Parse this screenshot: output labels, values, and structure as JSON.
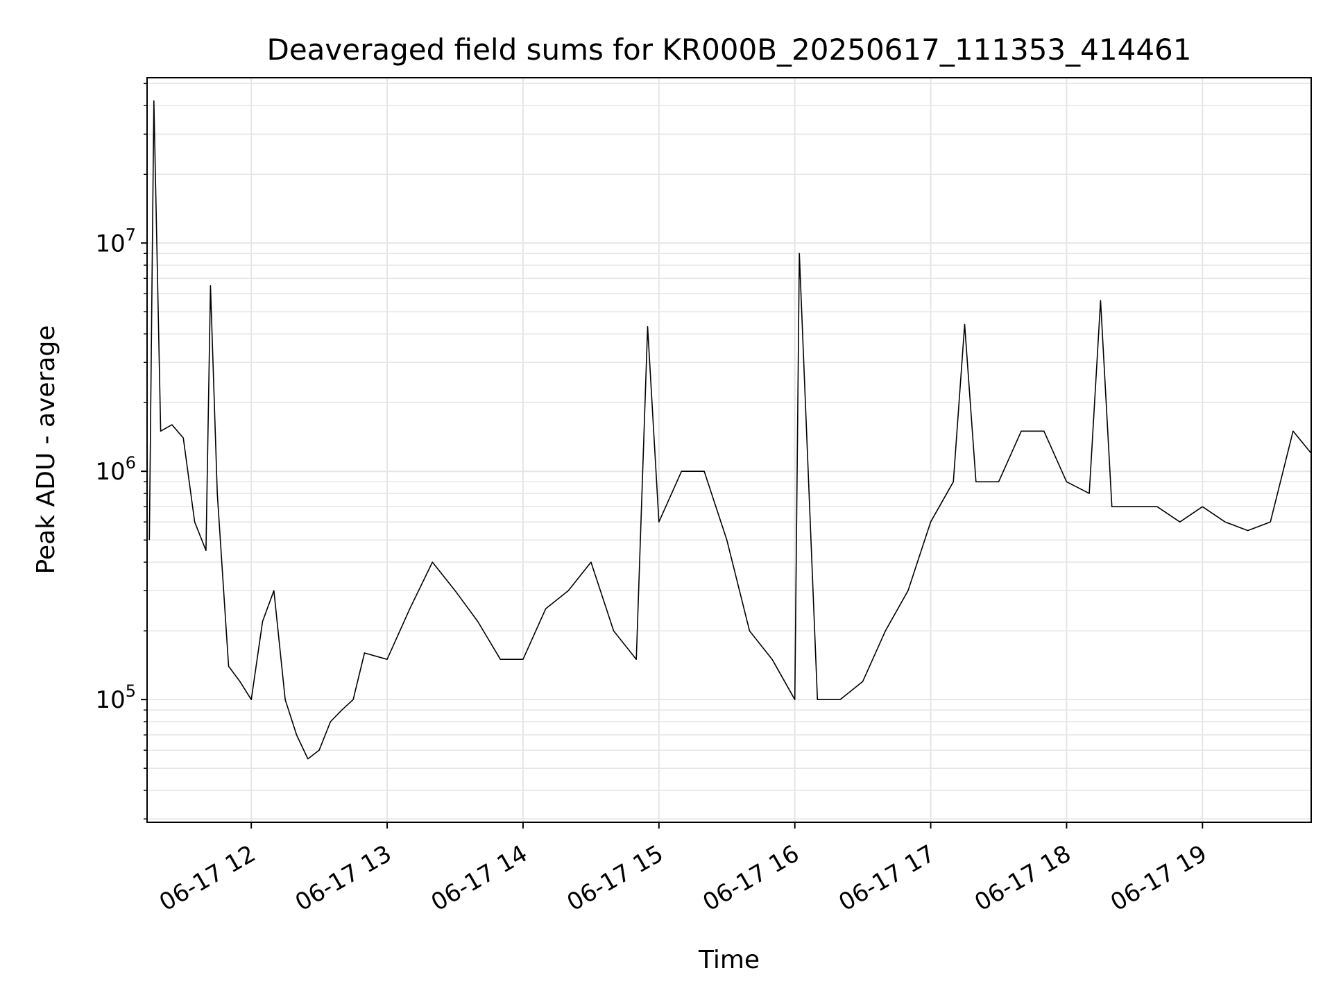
{
  "chart_data": {
    "type": "line",
    "title": "Deaveraged field sums for KR000B_20250617_111353_414461",
    "xlabel": "Time",
    "ylabel": "Peak ADU - average",
    "x_axis_type": "time",
    "y_axis_type": "log",
    "xlim": [
      "2025-06-17 11:14",
      "2025-06-17 19:48"
    ],
    "ylim": [
      29000,
      53000000
    ],
    "x_ticks": [
      {
        "value": "2025-06-17 12:00",
        "label": "06-17 12"
      },
      {
        "value": "2025-06-17 13:00",
        "label": "06-17 13"
      },
      {
        "value": "2025-06-17 14:00",
        "label": "06-17 14"
      },
      {
        "value": "2025-06-17 15:00",
        "label": "06-17 15"
      },
      {
        "value": "2025-06-17 16:00",
        "label": "06-17 16"
      },
      {
        "value": "2025-06-17 17:00",
        "label": "06-17 17"
      },
      {
        "value": "2025-06-17 18:00",
        "label": "06-17 18"
      },
      {
        "value": "2025-06-17 19:00",
        "label": "06-17 19"
      }
    ],
    "y_ticks": [
      {
        "value": 100000,
        "base": "10",
        "exp": "5"
      },
      {
        "value": 1000000,
        "base": "10",
        "exp": "6"
      },
      {
        "value": 10000000,
        "base": "10",
        "exp": "7"
      }
    ],
    "grid": true,
    "minor_grid": true,
    "legend": "none",
    "line_color": "#000000",
    "grid_color": "#e6e6e6",
    "series": [
      {
        "x": [
          "2025-06-17 11:15",
          "2025-06-17 11:17",
          "2025-06-17 11:20",
          "2025-06-17 11:25",
          "2025-06-17 11:30",
          "2025-06-17 11:35",
          "2025-06-17 11:40",
          "2025-06-17 11:42",
          "2025-06-17 11:45",
          "2025-06-17 11:50",
          "2025-06-17 11:55",
          "2025-06-17 12:00",
          "2025-06-17 12:05",
          "2025-06-17 12:10",
          "2025-06-17 12:15",
          "2025-06-17 12:20",
          "2025-06-17 12:25",
          "2025-06-17 12:30",
          "2025-06-17 12:35",
          "2025-06-17 12:40",
          "2025-06-17 12:45",
          "2025-06-17 12:50",
          "2025-06-17 13:00",
          "2025-06-17 13:10",
          "2025-06-17 13:20",
          "2025-06-17 13:30",
          "2025-06-17 13:40",
          "2025-06-17 13:50",
          "2025-06-17 14:00",
          "2025-06-17 14:10",
          "2025-06-17 14:20",
          "2025-06-17 14:30",
          "2025-06-17 14:40",
          "2025-06-17 14:50",
          "2025-06-17 14:55",
          "2025-06-17 15:00",
          "2025-06-17 15:10",
          "2025-06-17 15:20",
          "2025-06-17 15:30",
          "2025-06-17 15:40",
          "2025-06-17 15:50",
          "2025-06-17 16:00",
          "2025-06-17 16:02",
          "2025-06-17 16:10",
          "2025-06-17 16:20",
          "2025-06-17 16:30",
          "2025-06-17 16:40",
          "2025-06-17 16:50",
          "2025-06-17 17:00",
          "2025-06-17 17:10",
          "2025-06-17 17:15",
          "2025-06-17 17:20",
          "2025-06-17 17:30",
          "2025-06-17 17:40",
          "2025-06-17 17:50",
          "2025-06-17 18:00",
          "2025-06-17 18:10",
          "2025-06-17 18:15",
          "2025-06-17 18:20",
          "2025-06-17 18:30",
          "2025-06-17 18:40",
          "2025-06-17 18:50",
          "2025-06-17 19:00",
          "2025-06-17 19:10",
          "2025-06-17 19:20",
          "2025-06-17 19:30",
          "2025-06-17 19:40",
          "2025-06-17 19:48"
        ],
        "y": [
          500000,
          42000000,
          1500000,
          1600000,
          1400000,
          600000,
          450000,
          6500000,
          800000,
          140000,
          120000,
          100000,
          220000,
          300000,
          100000,
          70000,
          55000,
          60000,
          80000,
          90000,
          100000,
          160000,
          150000,
          250000,
          400000,
          300000,
          220000,
          150000,
          150000,
          250000,
          300000,
          400000,
          200000,
          150000,
          4300000,
          600000,
          1000000,
          1000000,
          500000,
          200000,
          150000,
          100000,
          9000000,
          100000,
          100000,
          120000,
          200000,
          300000,
          600000,
          900000,
          4400000,
          900000,
          900000,
          1500000,
          1500000,
          900000,
          800000,
          5600000,
          700000,
          700000,
          700000,
          600000,
          700000,
          600000,
          550000,
          600000,
          1500000,
          1200000
        ]
      }
    ]
  }
}
